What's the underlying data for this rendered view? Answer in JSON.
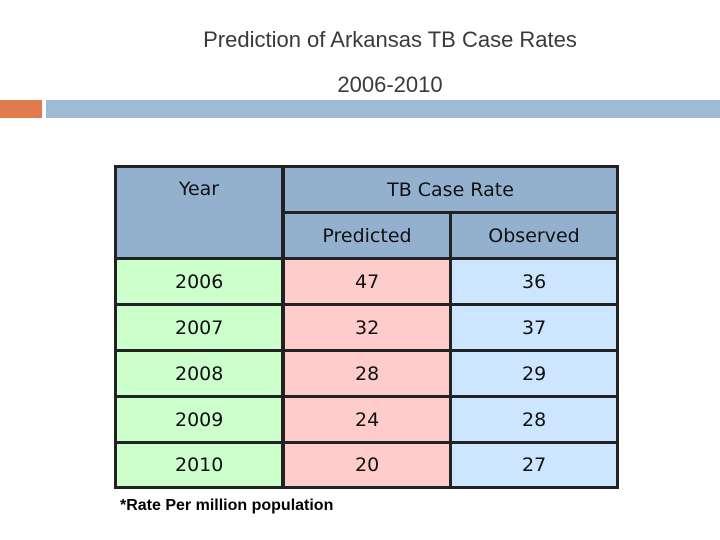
{
  "title": {
    "line1": "Prediction of Arkansas TB Case Rates",
    "line2": "2006-2010"
  },
  "colors": {
    "accent_orange": "#e07b4d",
    "accent_blue": "#9ebad4",
    "header_fill": "#93b1cf",
    "year_fill": "#ccffcc",
    "predicted_fill": "#ffcccc",
    "observed_fill": "#cce6ff"
  },
  "table": {
    "header": {
      "year": "Year",
      "group": "TB Case Rate",
      "predicted": "Predicted",
      "observed": "Observed"
    },
    "rows": [
      {
        "year": "2006",
        "predicted": "47",
        "observed": "36"
      },
      {
        "year": "2007",
        "predicted": "32",
        "observed": "37"
      },
      {
        "year": "2008",
        "predicted": "28",
        "observed": "29"
      },
      {
        "year": "2009",
        "predicted": "24",
        "observed": "28"
      },
      {
        "year": "2010",
        "predicted": "20",
        "observed": "27"
      }
    ]
  },
  "footnote": "*Rate Per million population"
}
